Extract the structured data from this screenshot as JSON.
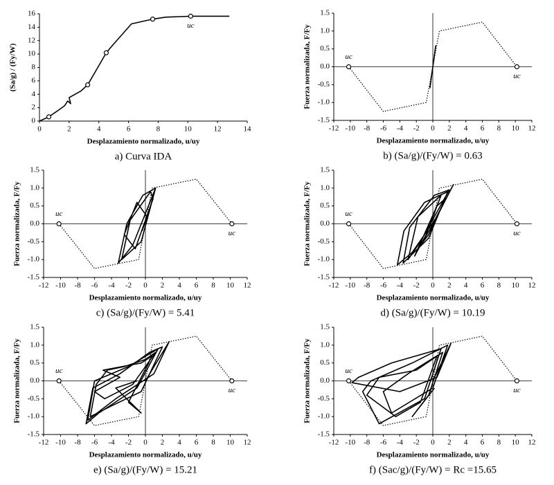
{
  "chart_data": [
    {
      "type": "line",
      "title": "a) Curva IDA",
      "x_label": "Desplazamiento normalizado, u/uy",
      "y_label": "(Sa/g) / (Fy/W)",
      "xlim": [
        0,
        14
      ],
      "ylim": [
        0,
        16
      ],
      "xticks": [
        0,
        2,
        4,
        6,
        8,
        10,
        12,
        14
      ],
      "yticks": [
        0,
        2,
        4,
        6,
        8,
        10,
        12,
        14,
        16
      ],
      "zero_lines": false,
      "series": [
        {
          "color": "#000000",
          "style": "solid",
          "x": [
            0,
            0.63,
            1.2,
            1.7,
            1.9,
            2.1,
            2.0,
            2.8,
            3.25,
            3.8,
            4.5,
            5.0,
            5.8,
            6.2,
            7.63,
            8.5,
            10.19,
            12.8
          ],
          "y": [
            0,
            0.63,
            1.5,
            2.3,
            3.0,
            2.6,
            3.5,
            4.5,
            5.41,
            7.5,
            10.19,
            11.5,
            13.5,
            14.5,
            15.21,
            15.5,
            15.65,
            15.65
          ]
        }
      ],
      "markers": {
        "x": [
          0.63,
          3.25,
          4.5,
          7.63,
          10.19
        ],
        "y": [
          0.63,
          5.41,
          10.19,
          15.21,
          15.65
        ]
      },
      "annotations": [
        "uc"
      ]
    },
    {
      "type": "line",
      "title": "b) (Sa/g)/(Fy/W) = 0.63",
      "x_label": "Desplazamiento normalizado, u/uy",
      "y_label": "Fuerza normalizada, F/Fy",
      "xlim": [
        -12,
        12
      ],
      "ylim": [
        -1.5,
        1.5
      ],
      "xticks": [
        -12,
        -10,
        -8,
        -6,
        -4,
        -2,
        0,
        2,
        4,
        6,
        8,
        10,
        12
      ],
      "yticks": [
        {
          "value": -1.5,
          "label": "-1.5"
        },
        {
          "value": -1,
          "label": "-1.0"
        },
        {
          "value": -0.5,
          "label": "-0.5"
        },
        {
          "value": 0,
          "label": "0.0"
        },
        {
          "value": 0.5,
          "label": "0.5"
        },
        {
          "value": 1,
          "label": "1.0"
        },
        {
          "value": 1.5,
          "label": "1.5"
        }
      ],
      "zero_lines": true,
      "series": [
        {
          "color": "#000000",
          "style": "dotted",
          "x": [
            -10.19,
            -6,
            -0.8,
            0.8,
            6,
            10.19
          ],
          "y": [
            0,
            -1.25,
            -1,
            1,
            1.25,
            0
          ]
        },
        {
          "color": "#000000",
          "style": "solid",
          "x": [
            -0.35,
            0.35
          ],
          "y": [
            -0.6,
            0.6
          ]
        }
      ],
      "markers": {
        "x": [
          -10.19,
          10.19
        ],
        "y": [
          0,
          0
        ]
      },
      "annotations": [
        "uc",
        "uc"
      ]
    },
    {
      "type": "line",
      "title": "c) (Sa/g)/(Fy/W) = 5.41",
      "x_label": "Desplazamiento normalizado, u/uy",
      "y_label": "Fuerza normalizada, F/Fy",
      "xlim": [
        -12,
        12
      ],
      "ylim": [
        -1.5,
        1.5
      ],
      "xticks": [
        -12,
        -10,
        -8,
        -6,
        -4,
        -2,
        0,
        2,
        4,
        6,
        8,
        10,
        12
      ],
      "yticks": [
        {
          "value": -1.5,
          "label": "-1.5"
        },
        {
          "value": -1,
          "label": "-1.0"
        },
        {
          "value": -0.5,
          "label": "-0.5"
        },
        {
          "value": 0,
          "label": "0.0"
        },
        {
          "value": 0.5,
          "label": "0.5"
        },
        {
          "value": 1,
          "label": "1.0"
        },
        {
          "value": 1.5,
          "label": "1.5"
        }
      ],
      "zero_lines": true,
      "series": [
        {
          "color": "#000000",
          "style": "dotted",
          "x": [
            -10.19,
            -6,
            -0.8,
            0.8,
            6,
            10.19
          ],
          "y": [
            0,
            -1.25,
            -1,
            1,
            1.25,
            0
          ]
        },
        {
          "color": "#000000",
          "style": "solid",
          "x": [
            0,
            1.2,
            -1.5,
            -3.2,
            -2.2,
            -0.3,
            1.2,
            -0.5,
            -2.8,
            -1.8,
            0.6,
            0.9,
            -1.2,
            -2.5,
            -1.0,
            0.2,
            -0.4
          ],
          "y": [
            0,
            1.0,
            -0.6,
            -1.1,
            0,
            0.8,
            1.0,
            -0.5,
            -1.0,
            0.1,
            0.9,
            0.7,
            -0.7,
            -0.3,
            0.6,
            0.2,
            -0.2
          ]
        }
      ],
      "markers": {
        "x": [
          -10.19,
          10.19
        ],
        "y": [
          0,
          0
        ]
      },
      "annotations": [
        "uc",
        "uc"
      ]
    },
    {
      "type": "line",
      "title": "d) (Sa/g)/(Fy/W) = 10.19",
      "x_label": "Desplazamiento normalizado, u/uy",
      "y_label": "Fuerza normalizada, F/Fy",
      "xlim": [
        -12,
        12
      ],
      "ylim": [
        -1.5,
        1.5
      ],
      "xticks": [
        -12,
        -10,
        -8,
        -6,
        -4,
        -2,
        0,
        2,
        4,
        6,
        8,
        10,
        12
      ],
      "yticks": [
        {
          "value": -1.5,
          "label": "-1.5"
        },
        {
          "value": -1,
          "label": "-1.0"
        },
        {
          "value": -0.5,
          "label": "-0.5"
        },
        {
          "value": 0,
          "label": "0.0"
        },
        {
          "value": 0.5,
          "label": "0.5"
        },
        {
          "value": 1,
          "label": "1.0"
        },
        {
          "value": 1.5,
          "label": "1.5"
        }
      ],
      "zero_lines": true,
      "series": [
        {
          "color": "#000000",
          "style": "dotted",
          "x": [
            -10.19,
            -6,
            -0.8,
            0.8,
            6,
            10.19
          ],
          "y": [
            0,
            -1.25,
            -1,
            1,
            1.25,
            0
          ]
        },
        {
          "color": "#000000",
          "style": "solid",
          "x": [
            0,
            2.5,
            0.5,
            -2.5,
            -4.3,
            -3.5,
            -1.0,
            1.8,
            -0.5,
            -3.6,
            -2.8,
            0.2,
            2.0,
            -1.5,
            -3.0,
            -1.8,
            1.0,
            -0.8,
            -2.2,
            0.5,
            1.5,
            -0.5,
            -1.5,
            0.3
          ],
          "y": [
            0,
            1.1,
            0.2,
            -0.8,
            -1.15,
            -0.2,
            0.6,
            0.9,
            -0.4,
            -1.1,
            -0.1,
            0.8,
            0.95,
            -0.5,
            -1.0,
            0.2,
            0.8,
            -0.3,
            -0.9,
            0.5,
            0.7,
            -0.3,
            -0.6,
            0.1
          ]
        }
      ],
      "markers": {
        "x": [
          -10.19,
          10.19
        ],
        "y": [
          0,
          0
        ]
      },
      "annotations": [
        "uc",
        "uc"
      ]
    },
    {
      "type": "line",
      "title": "e) (Sa/g)/(Fy/W) = 15.21",
      "x_label": "Desplazamiento normalizado, u/uy",
      "y_label": "Fuerza normalizada, F/Fy",
      "xlim": [
        -12,
        12
      ],
      "ylim": [
        -1.5,
        1.5
      ],
      "xticks": [
        -12,
        -10,
        -8,
        -6,
        -4,
        -2,
        0,
        2,
        4,
        6,
        8,
        10,
        12
      ],
      "yticks": [
        {
          "value": -1.5,
          "label": "-1.5"
        },
        {
          "value": -1,
          "label": "-1.0"
        },
        {
          "value": -0.5,
          "label": "-0.5"
        },
        {
          "value": 0,
          "label": "0.0"
        },
        {
          "value": 0.5,
          "label": "0.5"
        },
        {
          "value": 1,
          "label": "1.0"
        },
        {
          "value": 1.5,
          "label": "1.5"
        }
      ],
      "zero_lines": true,
      "series": [
        {
          "color": "#000000",
          "style": "dotted",
          "x": [
            -10.19,
            -6,
            -0.8,
            0.8,
            6,
            10.19
          ],
          "y": [
            0,
            -1.25,
            -1,
            1,
            1.25,
            0
          ]
        },
        {
          "color": "#000000",
          "style": "solid",
          "x": [
            0,
            2.8,
            1.0,
            -3.5,
            -6.8,
            -6.0,
            -2.0,
            1.5,
            -1.0,
            -5.5,
            -7.0,
            -6.2,
            -3.0,
            0.5,
            2.0,
            -0.5,
            -4.0,
            -6.5,
            -5.8,
            -4.5,
            -2.5,
            0,
            1.2,
            -1.5,
            -4.8,
            -6.0,
            -3.0,
            -5.0,
            -0.5,
            0.8,
            -2.0,
            -0.5,
            -3.5,
            -1.0
          ],
          "y": [
            0,
            1.1,
            0.2,
            -0.5,
            -1.1,
            0,
            0.4,
            0.9,
            -0.2,
            -0.9,
            -1.2,
            -0.2,
            0.2,
            0.8,
            0.95,
            -0.3,
            -0.7,
            -1.0,
            -0.1,
            0.3,
            0.4,
            0.6,
            0.8,
            -0.1,
            -0.5,
            -0.3,
            0.1,
            0.3,
            0.5,
            0.7,
            -0.6,
            -0.9,
            -0.2,
            0
          ]
        }
      ],
      "markers": {
        "x": [
          -10.19,
          10.19
        ],
        "y": [
          0,
          0
        ]
      },
      "annotations": [
        "uc",
        "uc"
      ]
    },
    {
      "type": "line",
      "title": "f) (Sac/g)/(Fy/W) = Rc =15.65",
      "x_label": "Desplazamiento normalizado, u/uy",
      "y_label": "Fuerza normalizada, F/Fy",
      "xlim": [
        -12,
        12
      ],
      "ylim": [
        -1.5,
        1.5
      ],
      "xticks": [
        -12,
        -10,
        -8,
        -6,
        -4,
        -2,
        0,
        2,
        4,
        6,
        8,
        10,
        12
      ],
      "yticks": [
        {
          "value": -1.5,
          "label": "-1.5"
        },
        {
          "value": -1,
          "label": "-1.0"
        },
        {
          "value": -0.5,
          "label": "-0.5"
        },
        {
          "value": 0,
          "label": "0.0"
        },
        {
          "value": 0.5,
          "label": "0.5"
        },
        {
          "value": 1,
          "label": "1.0"
        },
        {
          "value": 1.5,
          "label": "1.5"
        }
      ],
      "zero_lines": true,
      "series": [
        {
          "color": "#000000",
          "style": "dotted",
          "x": [
            -10.19,
            -6,
            -0.8,
            0.8,
            6,
            10.19
          ],
          "y": [
            0,
            -1.25,
            -1,
            1,
            1.25,
            0
          ]
        },
        {
          "color": "#000000",
          "style": "solid",
          "x": [
            0,
            2.2,
            0.5,
            -4.0,
            -9.8,
            -9.0,
            -5.0,
            1.0,
            -1.0,
            -6.5,
            -8.5,
            -7.5,
            -2.5,
            1.8,
            0,
            -5.0,
            -6.0,
            -3.0,
            0.5,
            -1.5,
            -4.5,
            -8.0,
            -6.5,
            -2.0,
            1.2,
            -0.5,
            -2.5,
            0.2
          ],
          "y": [
            0,
            1.05,
            0.1,
            -0.3,
            -0.05,
            0.1,
            0.5,
            0.9,
            -0.5,
            -1.2,
            -0.3,
            0,
            0.5,
            1.0,
            -0.2,
            -0.9,
            -0.3,
            0.2,
            0.7,
            -0.6,
            -1.0,
            -0.4,
            0.1,
            0.3,
            0.8,
            -0.4,
            -1.0,
            -0.2
          ]
        }
      ],
      "markers": {
        "x": [
          -10.19,
          10.19
        ],
        "y": [
          0,
          0
        ]
      },
      "annotations": [
        "uc",
        "uc"
      ]
    }
  ]
}
